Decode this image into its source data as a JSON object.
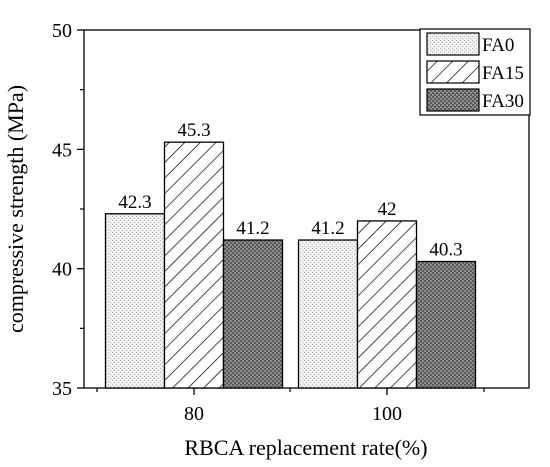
{
  "chart_data": {
    "type": "bar",
    "title": "",
    "xlabel": "RBCA replacement rate(%)",
    "ylabel": "compressive strength (MPa)",
    "ylim": [
      35,
      50
    ],
    "yticks": [
      35,
      40,
      45,
      50
    ],
    "grid": false,
    "legend_position": "top-right",
    "categories": [
      "80",
      "100"
    ],
    "series": [
      {
        "name": "FA0",
        "values": [
          42.3,
          41.2
        ],
        "labels": [
          "42.3",
          "41.2"
        ],
        "pattern": "dotted-light-gray"
      },
      {
        "name": "FA15",
        "values": [
          45.3,
          42.0
        ],
        "labels": [
          "45.3",
          "42"
        ],
        "pattern": "diagonal-hatch"
      },
      {
        "name": "FA30",
        "values": [
          41.2,
          40.3
        ],
        "labels": [
          "41.2",
          "40.3"
        ],
        "pattern": "dark-crosshatch-gray"
      }
    ]
  }
}
